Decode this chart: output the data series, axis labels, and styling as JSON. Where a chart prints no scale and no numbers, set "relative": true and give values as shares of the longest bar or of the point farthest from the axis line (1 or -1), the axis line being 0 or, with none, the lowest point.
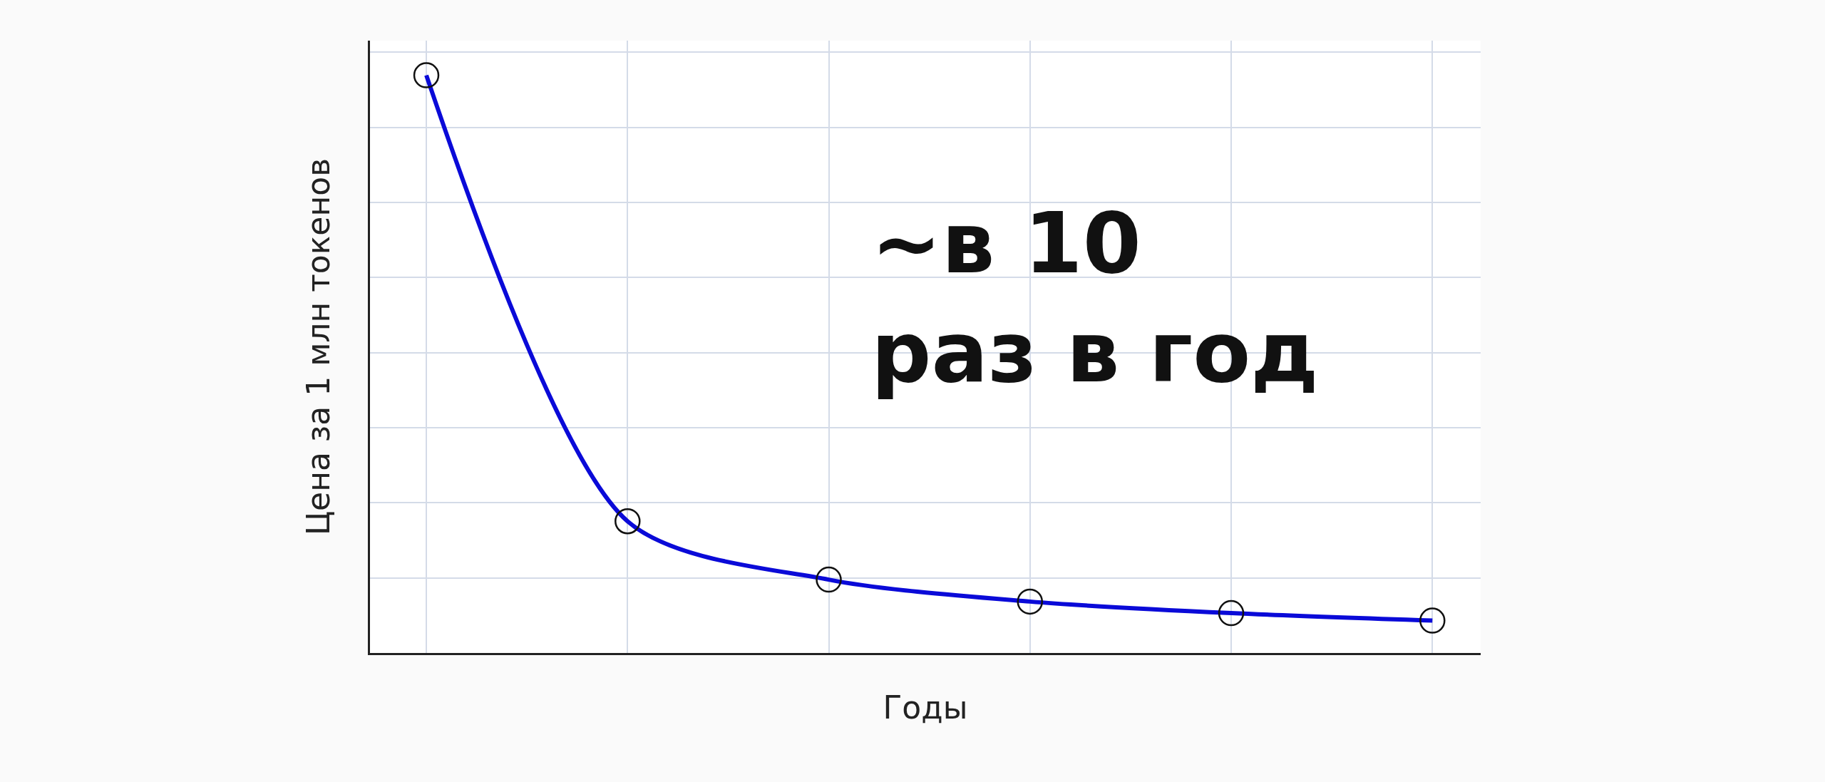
{
  "chart_data": {
    "type": "line",
    "relative": true,
    "xlabel": "Годы",
    "ylabel": "Цена за 1 млн токенов",
    "categories": [
      null,
      null,
      null,
      null,
      null,
      null
    ],
    "series": [
      {
        "color": "#0a0ad8",
        "values": [
          1,
          0.228,
          0.127,
          0.089,
          0.069,
          0.056
        ]
      }
    ],
    "marker": "circle",
    "line_style": "solid",
    "grid": true,
    "annotations": [
      "~в 10\nраз в год"
    ]
  }
}
